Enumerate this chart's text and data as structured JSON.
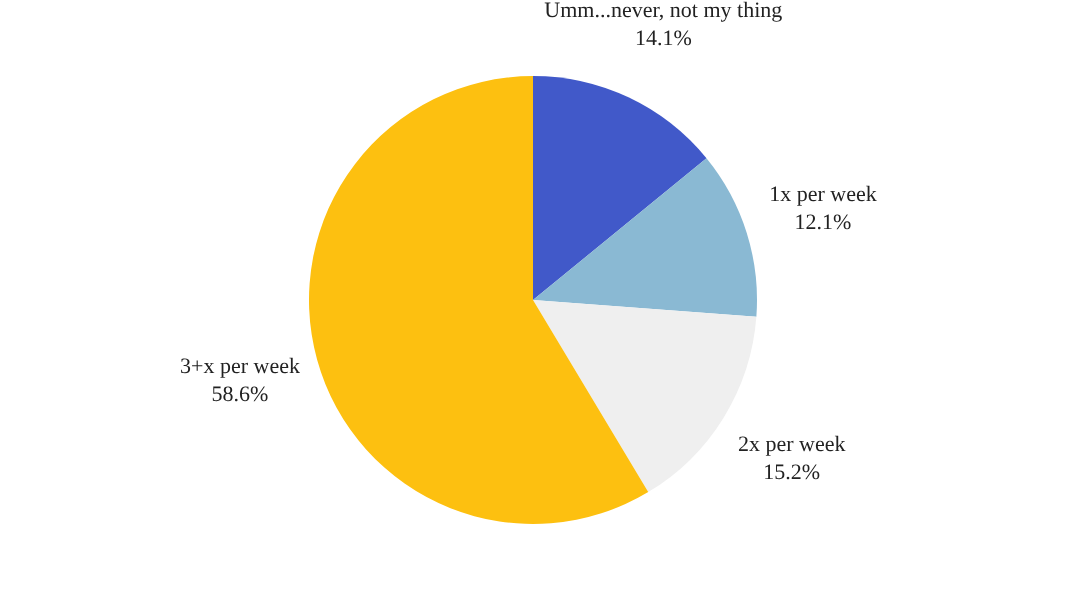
{
  "chart_data": {
    "type": "pie",
    "categories": [
      "Umm...never, not my thing",
      "1x per week",
      "2x per week",
      "3+x per week"
    ],
    "values": [
      14.1,
      12.1,
      15.2,
      58.6
    ],
    "value_labels": [
      "14.1%",
      "12.1%",
      "15.2%",
      "58.6%"
    ],
    "colors": [
      "#4159c9",
      "#8ab9d3",
      "#efefef",
      "#fdc010"
    ],
    "legend": false
  }
}
